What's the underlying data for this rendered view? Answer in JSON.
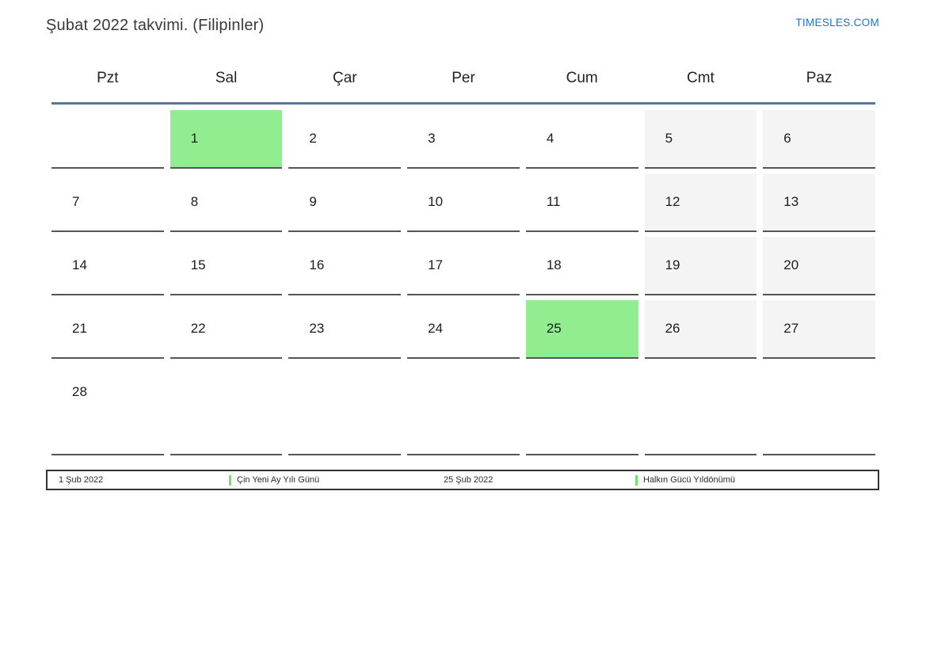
{
  "header": {
    "title": "Şubat 2022 takvimi. (Filipinler)",
    "site_link": "TIMESLES.COM"
  },
  "weekdays": [
    "Pzt",
    "Sal",
    "Çar",
    "Per",
    "Cum",
    "Cmt",
    "Paz"
  ],
  "calendar": {
    "month_label": "Şubat 2022",
    "region": "Filipinler",
    "weeks": [
      [
        "",
        "1",
        "2",
        "3",
        "4",
        "5",
        "6"
      ],
      [
        "7",
        "8",
        "9",
        "10",
        "11",
        "12",
        "13"
      ],
      [
        "14",
        "15",
        "16",
        "17",
        "18",
        "19",
        "20"
      ],
      [
        "21",
        "22",
        "23",
        "24",
        "25",
        "26",
        "27"
      ],
      [
        "28",
        "",
        "",
        "",
        "",
        "",
        ""
      ]
    ],
    "highlighted_days": [
      "1",
      "25"
    ],
    "weekend_columns": [
      5,
      6
    ]
  },
  "legend": {
    "entries": [
      {
        "date": "1 Şub 2022",
        "name": "Çin Yeni Ay Yılı Günü"
      },
      {
        "date": "25 Şub 2022",
        "name": "Halkın Gücü Yıldönümü"
      }
    ]
  },
  "colors": {
    "holiday_bg": "#90ee90",
    "weekend_bg": "#f4f4f4",
    "header_line": "#54789e",
    "link_blue": "#2273b8",
    "legend_marker_green": "#70e070",
    "cell_border": "#555555"
  }
}
